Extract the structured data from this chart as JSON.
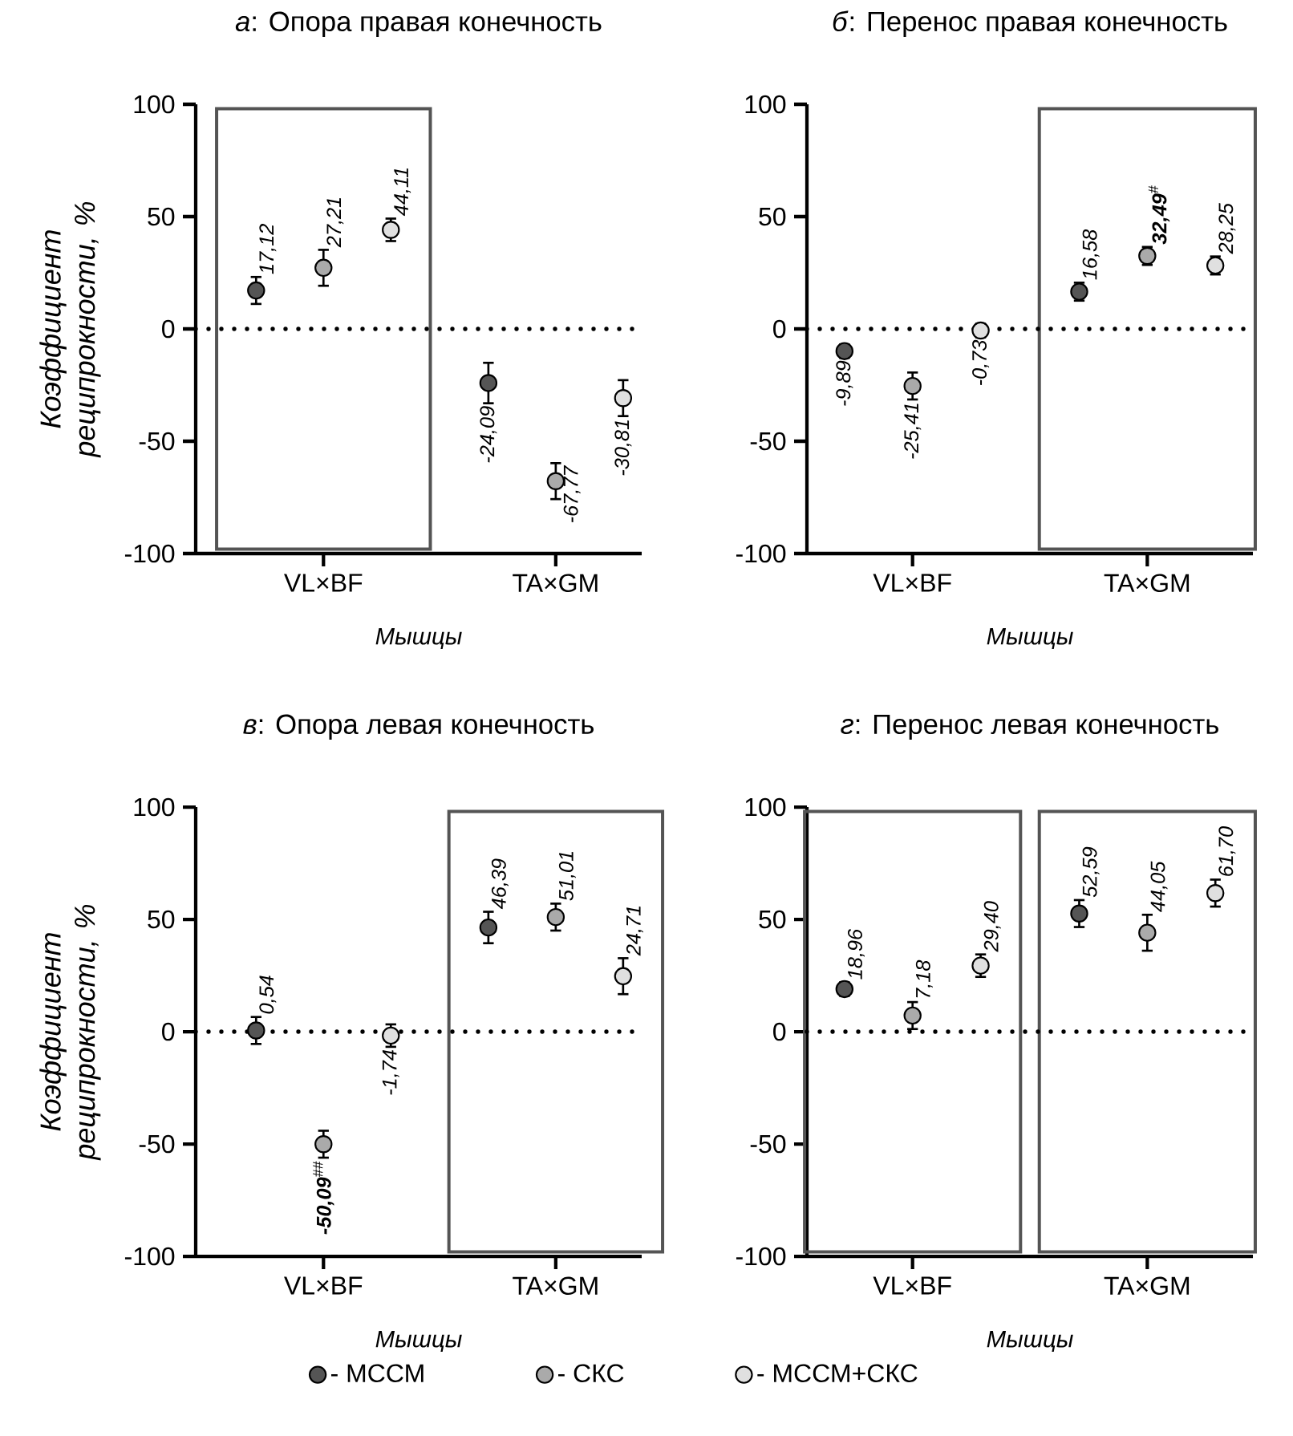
{
  "chart_data": [
    {
      "type": "scatter",
      "title": "*а*: Опора правая конечность",
      "xlabel": "Мышцы",
      "ylabel": "Коэффициент реципрокности, %",
      "categories": [
        "VL×BF",
        "TA×GM"
      ],
      "ylim": [
        -100,
        100
      ],
      "yticks": [
        -100,
        -50,
        0,
        50,
        100
      ],
      "series": [
        {
          "color": "#555555",
          "values": [
            17.12,
            -24.09
          ],
          "errors": [
            6,
            9
          ],
          "value_labels": [
            "17,12",
            "-24,09"
          ]
        },
        {
          "color": "#aaaaaa",
          "values": [
            27.21,
            -67.77
          ],
          "errors": [
            8,
            8
          ],
          "value_labels": [
            "27,21",
            "-67,77"
          ]
        },
        {
          "color": "#e0e0e0",
          "values": [
            44.11,
            -30.81
          ],
          "errors": [
            5,
            8
          ],
          "value_labels": [
            "44,11",
            "-30,81"
          ]
        }
      ],
      "ref_lines": [
        {
          "axis": "y",
          "value": 0,
          "line_style": "dotted"
        }
      ]
    },
    {
      "type": "scatter",
      "title": "*б*: Перенос правая конечность",
      "xlabel": "Мышцы",
      "categories": [
        "VL×BF",
        "TA×GM"
      ],
      "ylim": [
        -100,
        100
      ],
      "yticks": [
        -100,
        -50,
        0,
        50,
        100
      ],
      "series": [
        {
          "color": "#555555",
          "values": [
            -9.89,
            16.58
          ],
          "errors": [
            3,
            4
          ],
          "value_labels": [
            "-9,89",
            "16,58"
          ]
        },
        {
          "color": "#aaaaaa",
          "values": [
            -25.41,
            32.49
          ],
          "errors": [
            6,
            4
          ],
          "value_labels": [
            "-25,41",
            "**32,49**$^{#}$"
          ]
        },
        {
          "color": "#e0e0e0",
          "values": [
            -0.73,
            28.25
          ],
          "errors": [
            3,
            4
          ],
          "value_labels": [
            "-0,73",
            "28,25"
          ]
        }
      ],
      "ref_lines": [
        {
          "axis": "y",
          "value": 0,
          "line_style": "dotted"
        }
      ]
    },
    {
      "type": "scatter",
      "title": "*в*: Опора левая конечность",
      "xlabel": "Мышцы",
      "ylabel": "Коэффициент реципрокности, %",
      "categories": [
        "VL×BF",
        "TA×GM"
      ],
      "ylim": [
        -100,
        100
      ],
      "yticks": [
        -100,
        -50,
        0,
        50,
        100
      ],
      "legend": "bottom",
      "series": [
        {
          "name": "- МССМ",
          "color": "#555555",
          "values": [
            0.54,
            46.39
          ],
          "errors": [
            6,
            7
          ],
          "value_labels": [
            "0,54",
            "46,39"
          ]
        },
        {
          "name": "- СКС",
          "color": "#aaaaaa",
          "values": [
            -50.09,
            51.01
          ],
          "errors": [
            6,
            6
          ],
          "value_labels": [
            "**-50,09**$^{##}$",
            "51,01"
          ]
        },
        {
          "name": "- МССМ+СКС",
          "color": "#e0e0e0",
          "values": [
            -1.74,
            24.71
          ],
          "errors": [
            5,
            8
          ],
          "value_labels": [
            "-1,74",
            "24,71"
          ]
        }
      ],
      "ref_lines": [
        {
          "axis": "y",
          "value": 0,
          "line_style": "dotted"
        }
      ]
    },
    {
      "type": "scatter",
      "title": "*г*: Перенос левая конечность",
      "xlabel": "Мышцы",
      "categories": [
        "VL×BF",
        "TA×GM"
      ],
      "ylim": [
        -100,
        100
      ],
      "yticks": [
        -100,
        -50,
        0,
        50,
        100
      ],
      "series": [
        {
          "color": "#555555",
          "values": [
            18.96,
            52.59
          ],
          "errors": [
            3,
            6
          ],
          "value_labels": [
            "18,96",
            "52,59"
          ]
        },
        {
          "color": "#aaaaaa",
          "values": [
            7.18,
            44.05
          ],
          "errors": [
            6,
            8
          ],
          "value_labels": [
            "7,18",
            "44,05"
          ]
        },
        {
          "color": "#e0e0e0",
          "values": [
            29.4,
            61.7
          ],
          "errors": [
            5,
            6
          ],
          "value_labels": [
            "29,40",
            "61,70"
          ]
        }
      ],
      "ref_lines": [
        {
          "axis": "y",
          "value": 0,
          "line_style": "dotted"
        }
      ]
    }
  ]
}
